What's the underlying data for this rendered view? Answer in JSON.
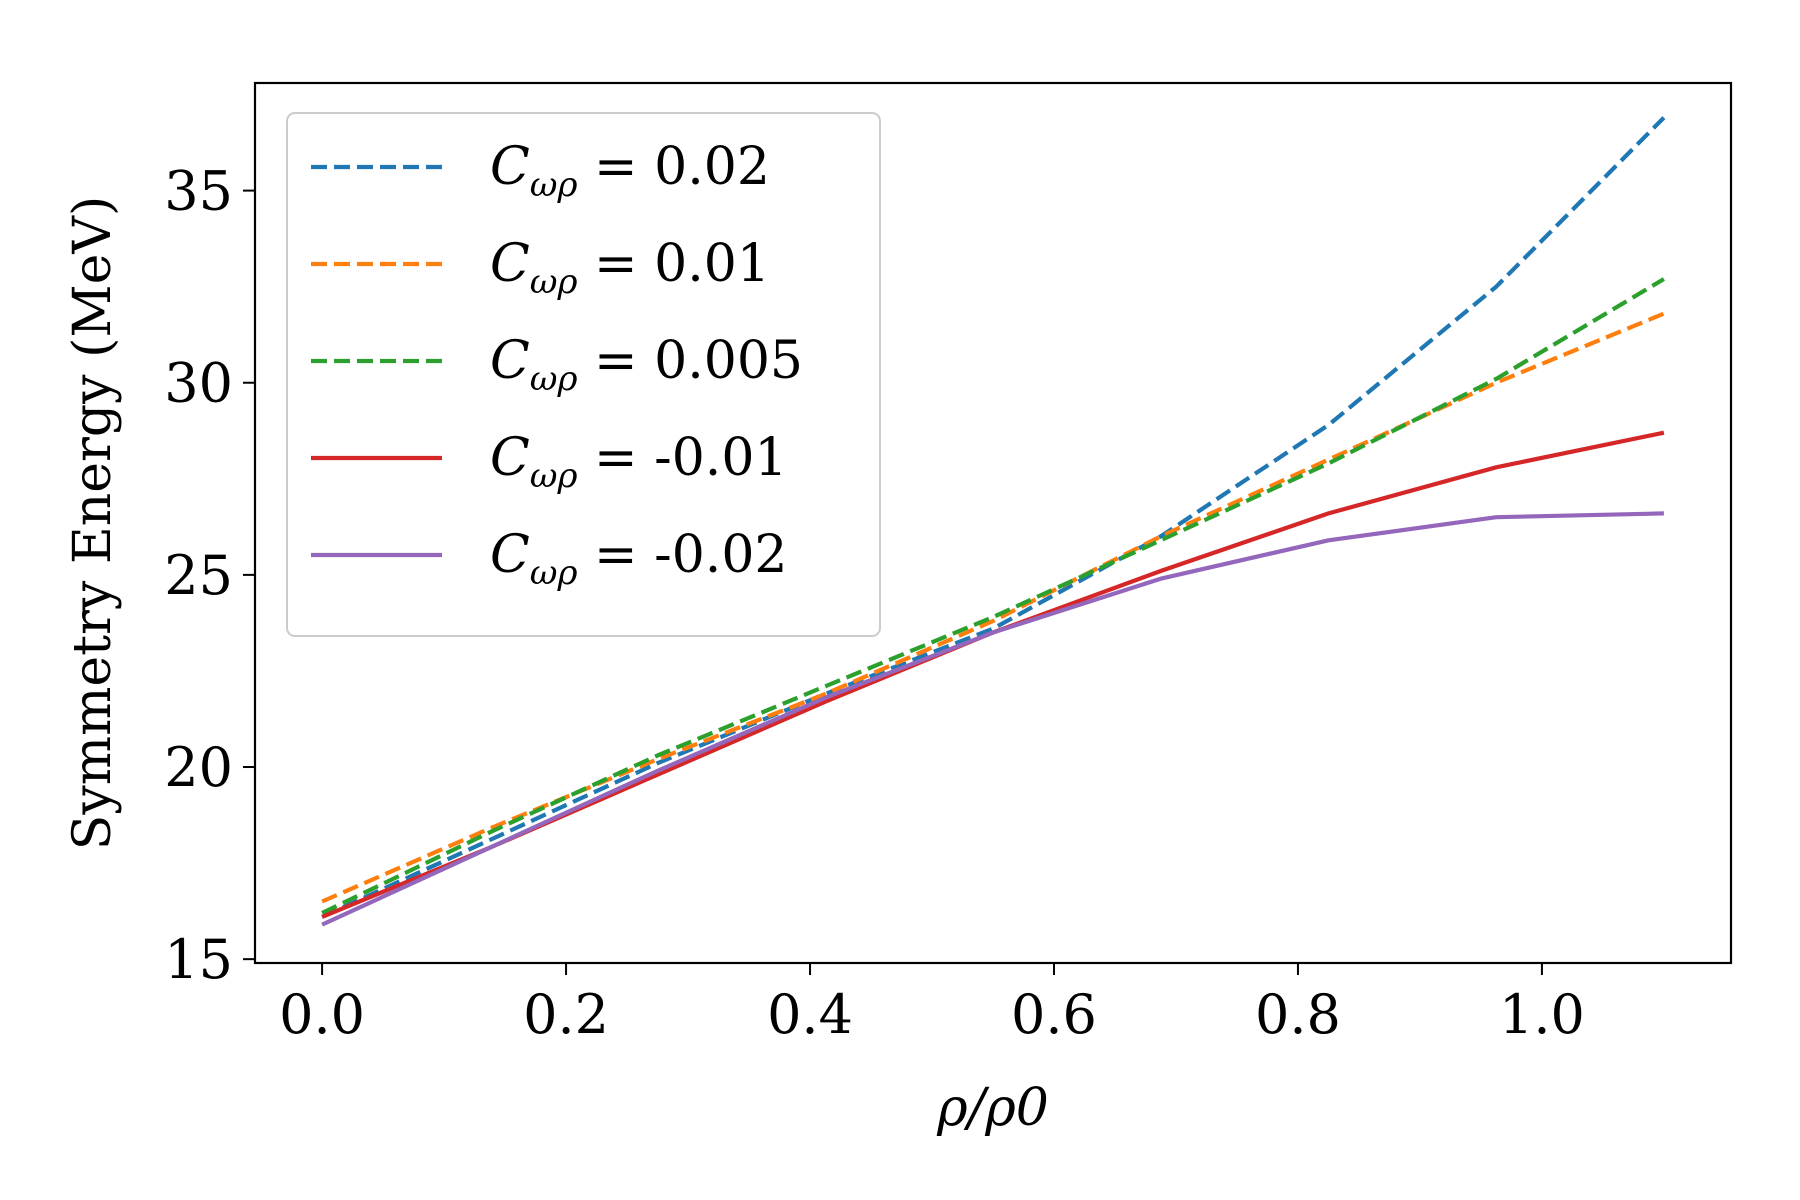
{
  "chart_data": {
    "type": "line",
    "title": "",
    "xlabel": "ρ/ρ0",
    "ylabel": "Symmetry Energy (MeV)",
    "xlim": [
      -0.055,
      1.155
    ],
    "ylim": [
      14.9,
      37.8
    ],
    "x_ticks": [
      0.0,
      0.2,
      0.4,
      0.6,
      0.8,
      1.0
    ],
    "x_tick_labels": [
      "0.0",
      "0.2",
      "0.4",
      "0.6",
      "0.8",
      "1.0"
    ],
    "y_ticks": [
      15,
      20,
      25,
      30,
      35
    ],
    "y_tick_labels": [
      "15",
      "20",
      "25",
      "30",
      "35"
    ],
    "grid": false,
    "legend_position": "top-left",
    "series": [
      {
        "name": "Cωρ = 0.02",
        "legend_symbol": "C",
        "legend_sub": "ωρ",
        "legend_value": " = 0.02",
        "color": "#1f77b4",
        "dash": "dashed",
        "x": [
          0.0,
          0.1375,
          0.275,
          0.4125,
          0.55,
          0.6875,
          0.825,
          0.9625,
          1.1
        ],
        "y": [
          16.1,
          18.1,
          20.1,
          21.9,
          23.6,
          26.0,
          28.9,
          32.5,
          36.9
        ]
      },
      {
        "name": "Cωρ = 0.01",
        "legend_symbol": "C",
        "legend_sub": "ωρ",
        "legend_value": " = 0.01",
        "color": "#ff7f0e",
        "dash": "dashed",
        "x": [
          0.0,
          0.1375,
          0.275,
          0.4125,
          0.55,
          0.6875,
          0.825,
          0.9625,
          1.1
        ],
        "y": [
          16.5,
          18.4,
          20.2,
          21.9,
          23.8,
          26.0,
          28.0,
          30.0,
          31.8
        ]
      },
      {
        "name": "Cωρ = 0.005",
        "legend_symbol": "C",
        "legend_sub": "ωρ",
        "legend_value": " = 0.005",
        "color": "#2ca02c",
        "dash": "dashed",
        "x": [
          0.0,
          0.1375,
          0.275,
          0.4125,
          0.55,
          0.6875,
          0.825,
          0.9625,
          1.1
        ],
        "y": [
          16.2,
          18.3,
          20.3,
          22.1,
          23.9,
          25.9,
          27.9,
          30.1,
          32.7
        ]
      },
      {
        "name": "Cωρ = -0.01",
        "legend_symbol": "C",
        "legend_sub": "ωρ",
        "legend_value": " = -0.01",
        "color": "#d62728",
        "dash": "solid",
        "x": [
          0.0,
          0.1375,
          0.275,
          0.4125,
          0.55,
          0.6875,
          0.825,
          0.9625,
          1.1
        ],
        "y": [
          16.1,
          17.9,
          19.8,
          21.7,
          23.5,
          25.1,
          26.6,
          27.8,
          28.7
        ]
      },
      {
        "name": "Cωρ = -0.02",
        "legend_symbol": "C",
        "legend_sub": "ωρ",
        "legend_value": " = -0.02",
        "color": "#9467bd",
        "dash": "solid",
        "x": [
          0.0,
          0.1375,
          0.275,
          0.4125,
          0.55,
          0.6875,
          0.825,
          0.9625,
          1.1
        ],
        "y": [
          15.9,
          17.9,
          19.9,
          21.8,
          23.5,
          24.9,
          25.9,
          26.5,
          26.6
        ]
      }
    ]
  }
}
